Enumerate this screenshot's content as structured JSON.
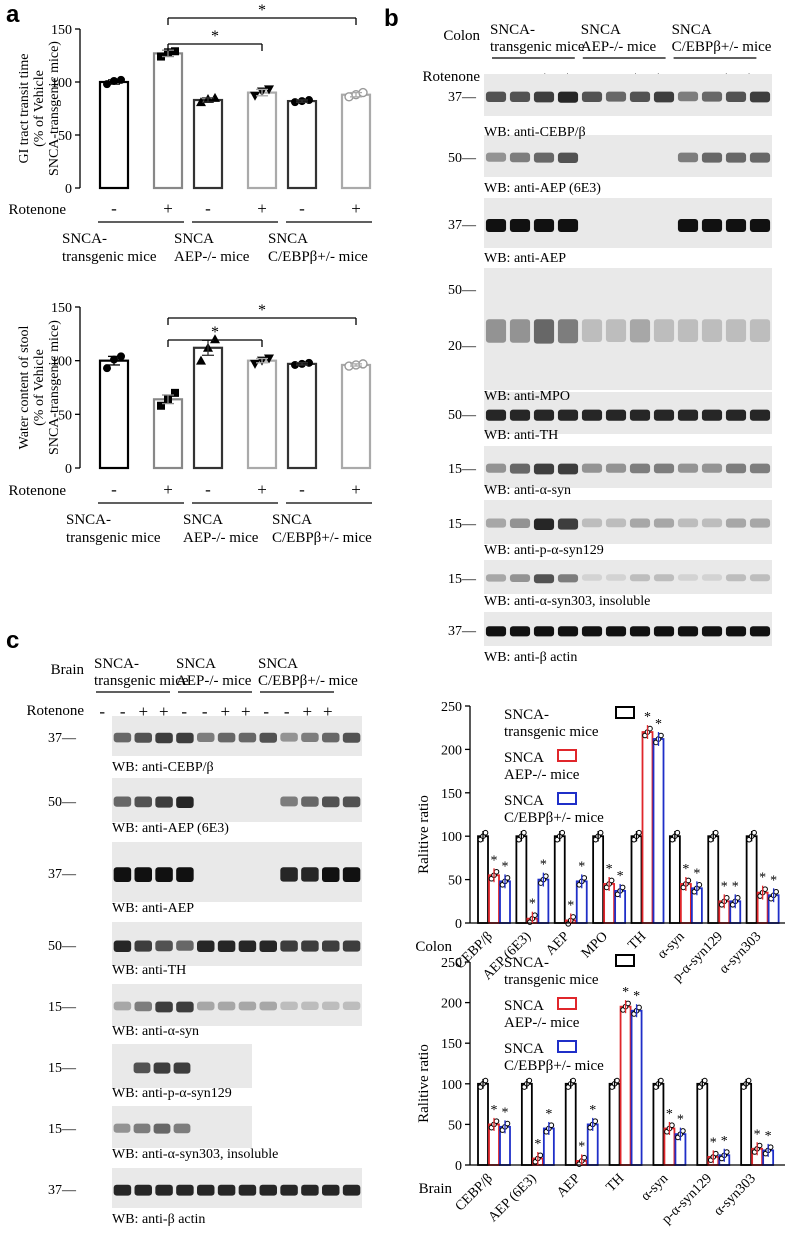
{
  "panel_labels": {
    "a": "a",
    "b": "b",
    "c": "c"
  },
  "rotenone_label": "Rotenone",
  "minus": "-",
  "plus": "+",
  "star": "*",
  "wb_prefix": "WB: ",
  "groups": {
    "snca_tg": [
      "SNCA-",
      "transgenic mice"
    ],
    "aep": [
      "SNCA",
      "AEP-/- mice"
    ],
    "cebp": [
      "SNCA",
      "C/EBPβ+/- mice"
    ]
  },
  "blot_b": {
    "tissue": "Colon",
    "rows": [
      {
        "mw": "37—",
        "label": "WB: anti-CEBP/β"
      },
      {
        "mw": "50—",
        "label": "WB: anti-AEP (6E3)"
      },
      {
        "mw": "37—",
        "label": "WB: anti-AEP"
      },
      {
        "mw": "50—",
        "mw2": "20—",
        "label": "WB: anti-MPO"
      },
      {
        "mw": "50—",
        "label": "WB: anti-TH"
      },
      {
        "mw": "15—",
        "label": "WB: anti-α-syn"
      },
      {
        "mw": "15—",
        "label": "WB: anti-p-α-syn129"
      },
      {
        "mw": "15—",
        "label": "WB: anti-α-syn303, insoluble"
      },
      {
        "mw": "37—",
        "label": "WB: anti-β actin"
      }
    ]
  },
  "blot_c": {
    "tissue": "Brain",
    "rows": [
      {
        "mw": "37—",
        "label": "WB: anti-CEBP/β"
      },
      {
        "mw": "50—",
        "label": "WB: anti-AEP (6E3)"
      },
      {
        "mw": "37—",
        "label": "WB: anti-AEP"
      },
      {
        "mw": "50—",
        "label": "WB: anti-TH"
      },
      {
        "mw": "15—",
        "label": "WB: anti-α-syn"
      },
      {
        "mw": "15—",
        "label": "WB: anti-p-α-syn129"
      },
      {
        "mw": "15—",
        "label": "WB: anti-α-syn303, insoluble"
      },
      {
        "mw": "37—",
        "label": "WB: anti-β actin"
      }
    ]
  },
  "chart_data": [
    {
      "type": "bar",
      "ylabel": [
        "GI tract transit time",
        "(% of Vehicle",
        "SNCA-transgenic mice)"
      ],
      "ylim": [
        0,
        150
      ],
      "yticks": [
        0,
        50,
        100,
        150
      ],
      "rotenone": [
        "-",
        "+",
        "-",
        "+",
        "-",
        "+"
      ],
      "values": [
        100,
        127,
        83,
        90,
        82,
        88
      ],
      "errors": [
        2,
        3,
        2,
        3,
        1,
        2
      ],
      "colors": [
        "#000000",
        "#888888",
        "#333333",
        "#aaaaaa",
        "#333333",
        "#aaaaaa"
      ],
      "points": [
        [
          98,
          101,
          102
        ],
        [
          124,
          128,
          129
        ],
        [
          81,
          84,
          85
        ],
        [
          87,
          91,
          93
        ],
        [
          81,
          82,
          83
        ],
        [
          86,
          88,
          90
        ]
      ],
      "point_markers": [
        "circle",
        "square",
        "triangle",
        "triangle-down",
        "circle",
        "circle-open"
      ],
      "significance": [
        {
          "from": 1,
          "to": 5,
          "label": "*"
        },
        {
          "from": 1,
          "to": 3,
          "label": "*"
        }
      ]
    },
    {
      "type": "bar",
      "ylabel": [
        "Water content of stool",
        "(% of Vehicle",
        "SNCA-transgenic mice)"
      ],
      "ylim": [
        0,
        150
      ],
      "yticks": [
        0,
        50,
        100,
        150
      ],
      "rotenone": [
        "-",
        "+",
        "-",
        "+",
        "-",
        "+"
      ],
      "values": [
        100,
        64,
        112,
        100,
        97,
        96
      ],
      "errors": [
        4,
        4,
        7,
        2,
        1,
        1
      ],
      "colors": [
        "#000000",
        "#888888",
        "#333333",
        "#aaaaaa",
        "#333333",
        "#aaaaaa"
      ],
      "points": [
        [
          93,
          101,
          104
        ],
        [
          58,
          64,
          70
        ],
        [
          100,
          112,
          120
        ],
        [
          97,
          100,
          102
        ],
        [
          96,
          97,
          98
        ],
        [
          95,
          96,
          97
        ]
      ],
      "point_markers": [
        "circle",
        "square",
        "triangle",
        "triangle-down",
        "circle",
        "circle-open"
      ],
      "significance": [
        {
          "from": 1,
          "to": 5,
          "label": "*"
        },
        {
          "from": 1,
          "to": 3,
          "label": "*"
        }
      ]
    },
    {
      "type": "bar",
      "tissue": "Colon",
      "ylabel": "Ralitive ratio",
      "ylim": [
        0,
        250
      ],
      "yticks": [
        0,
        50,
        100,
        150,
        200,
        250
      ],
      "categories": [
        "CEBP/β",
        "AEP (6E3)",
        "AEP",
        "MPO",
        "TH",
        "α-syn",
        "p-α-syn129",
        "α-syn303"
      ],
      "series": [
        {
          "name": "SNCA-transgenic mice",
          "values": [
            100,
            100,
            100,
            100,
            100,
            100,
            100,
            100
          ]
        },
        {
          "name": "SNCA AEP-/- mice",
          "values": [
            55,
            5,
            3,
            45,
            220,
            45,
            25,
            35
          ]
        },
        {
          "name": "SNCA C/EBPβ+/- mice",
          "values": [
            48,
            50,
            48,
            37,
            212,
            40,
            25,
            32
          ]
        }
      ],
      "legend": [
        "SNCA-",
        "transgenic mice",
        "SNCA",
        "AEP-/- mice",
        "SNCA",
        "C/EBPβ+/- mice"
      ]
    },
    {
      "type": "bar",
      "tissue": "Brain",
      "ylabel": "Ralitive ratio",
      "ylim": [
        0,
        250
      ],
      "yticks": [
        0,
        50,
        100,
        150,
        200,
        250
      ],
      "categories": [
        "CEBP/β",
        "AEP (6E3)",
        "AEP",
        "TH",
        "α-syn",
        "p-α-syn129",
        "α-syn303"
      ],
      "series": [
        {
          "name": "SNCA-transgenic mice",
          "values": [
            100,
            100,
            100,
            100,
            100,
            100,
            100
          ]
        },
        {
          "name": "SNCA AEP-/- mice",
          "values": [
            50,
            8,
            5,
            195,
            45,
            10,
            20
          ]
        },
        {
          "name": "SNCA C/EBPβ+/- mice",
          "values": [
            47,
            45,
            50,
            190,
            38,
            12,
            18
          ]
        }
      ],
      "legend": [
        "SNCA-",
        "transgenic mice",
        "SNCA",
        "AEP-/- mice",
        "SNCA",
        "C/EBPβ+/- mice"
      ]
    }
  ],
  "colors": {
    "series": [
      "#000000",
      "#e0262b",
      "#1f2fc8"
    ]
  }
}
